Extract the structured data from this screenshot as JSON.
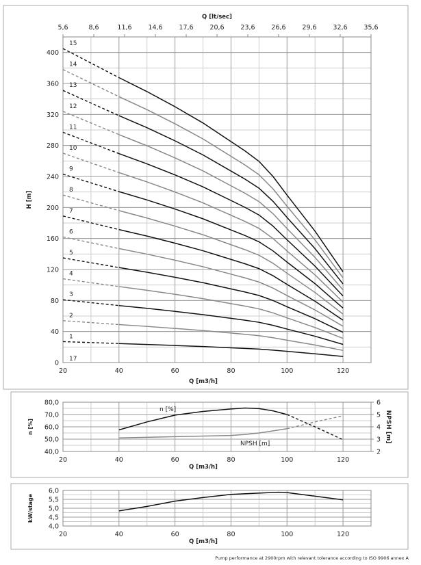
{
  "footnote": "Pump performance at 2900rpm with relevant tolerance according to ISO 9906 annex A",
  "chart_data": [
    {
      "type": "line",
      "id": "head",
      "xlabel": "Q [m3/h]",
      "ylabel": "H [m]",
      "x2label": "Q [lt/sec]",
      "xlim": [
        20,
        130
      ],
      "ylim": [
        0,
        420
      ],
      "xticks": [
        20,
        40,
        60,
        80,
        100,
        120
      ],
      "yticks": [
        0,
        40,
        80,
        120,
        160,
        200,
        240,
        280,
        320,
        360,
        400
      ],
      "x2ticks": [
        "5,6",
        "8,6",
        "11,6",
        "14,6",
        "17,6",
        "20,6",
        "23,6",
        "26,6",
        "29,6",
        "32,6",
        "35,6"
      ],
      "grid": true,
      "x": [
        20,
        40,
        50,
        60,
        70,
        80,
        85,
        90,
        95,
        100,
        110,
        120
      ],
      "single_stage_head": [
        27,
        24.5,
        23.3,
        22,
        20.6,
        19,
        18.2,
        17.3,
        16,
        14.4,
        11.3,
        7.8
      ],
      "dashed_below_x": 40,
      "stages": [
        1,
        2,
        3,
        4,
        5,
        6,
        7,
        8,
        9,
        10,
        11,
        12,
        13,
        14,
        15
      ],
      "stage_labels": [
        "1",
        "2",
        "3",
        "4",
        "5",
        "6",
        "7",
        "8",
        "9",
        "10",
        "11",
        "12",
        "13",
        "14",
        "15"
      ],
      "extra_label": "17",
      "colors": {
        "odd": "#111111",
        "even": "#888888"
      }
    },
    {
      "type": "line",
      "id": "efficiency",
      "xlabel": "Q [m3/h]",
      "ylabel": "n [%]",
      "y2label": "NPSH [m]",
      "xlim": [
        20,
        130
      ],
      "ylim": [
        40,
        80
      ],
      "y2lim": [
        2,
        6
      ],
      "xticks": [
        20,
        40,
        60,
        80,
        100,
        120
      ],
      "yticks": [
        "40,0",
        "50,0",
        "60,0",
        "70,0",
        "80,0"
      ],
      "y2ticks": [
        "2",
        "3",
        "4",
        "5",
        "6"
      ],
      "grid": true,
      "series": [
        {
          "name": "n [%]",
          "axis": "left",
          "color": "#111111",
          "dashed_from_x": 100,
          "x": [
            40,
            50,
            60,
            70,
            80,
            85,
            90,
            95,
            100,
            110,
            120
          ],
          "y": [
            57.5,
            64,
            69.5,
            72.5,
            74.5,
            75.3,
            74.8,
            73,
            70,
            60,
            49.5
          ]
        },
        {
          "name": "NPSH [m]",
          "axis": "right",
          "color": "#888888",
          "dashed_from_x": 100,
          "x": [
            40,
            60,
            80,
            85,
            90,
            100,
            110,
            120
          ],
          "y": [
            3.1,
            3.2,
            3.3,
            3.38,
            3.5,
            3.85,
            4.4,
            4.9
          ]
        }
      ]
    },
    {
      "type": "line",
      "id": "power",
      "xlabel": "Q [m3/h]",
      "ylabel": "kW/stage",
      "xlim": [
        20,
        130
      ],
      "ylim": [
        4.0,
        6.0
      ],
      "xticks": [
        20,
        40,
        60,
        80,
        100,
        120
      ],
      "yticks": [
        "4,0",
        "4,5",
        "5,0",
        "5,5",
        "6,0"
      ],
      "grid": true,
      "series": [
        {
          "color": "#111111",
          "x": [
            40,
            50,
            60,
            70,
            80,
            90,
            97,
            100,
            110,
            120
          ],
          "y": [
            4.85,
            5.1,
            5.4,
            5.6,
            5.78,
            5.85,
            5.9,
            5.88,
            5.68,
            5.47
          ]
        }
      ]
    }
  ]
}
